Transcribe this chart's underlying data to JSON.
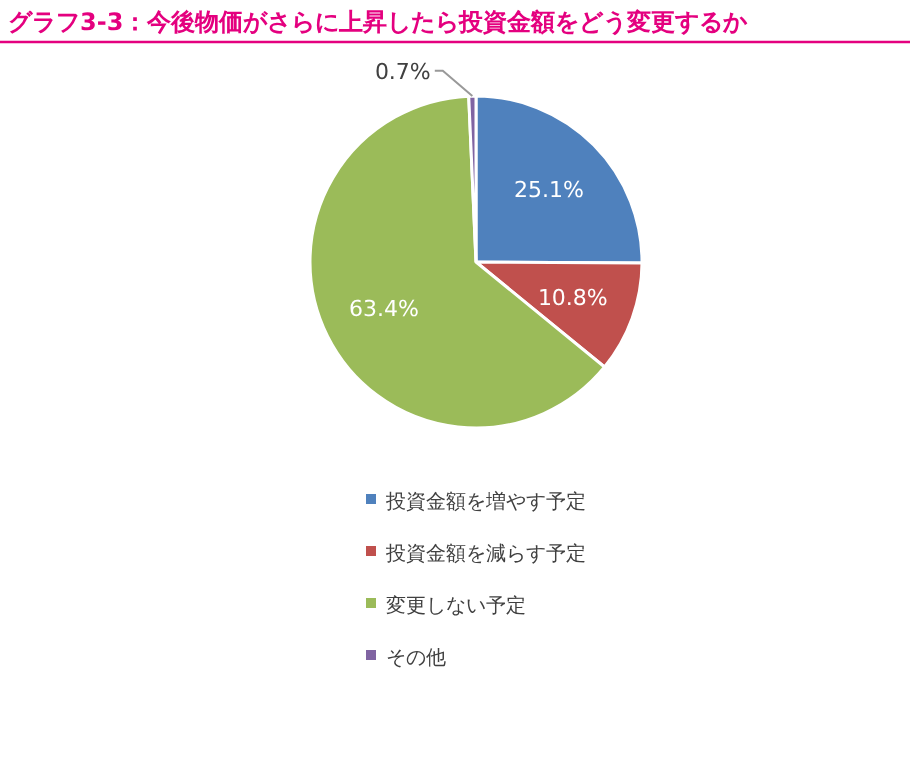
{
  "chart_data": {
    "type": "pie",
    "title": "グラフ3-3：今後物価がさらに上昇したら投資金額をどう変更するか",
    "categories": [
      "投資金額を増やす予定",
      "投資金額を減らす予定",
      "変更しない予定",
      "その他"
    ],
    "values": [
      25.1,
      10.8,
      63.4,
      0.7
    ],
    "colors": [
      "#4f81bd",
      "#c0504d",
      "#9bbb59",
      "#8064a2"
    ],
    "value_labels": [
      "25.1%",
      "10.8%",
      "63.4%",
      "0.7%"
    ],
    "legend": "bottom"
  }
}
